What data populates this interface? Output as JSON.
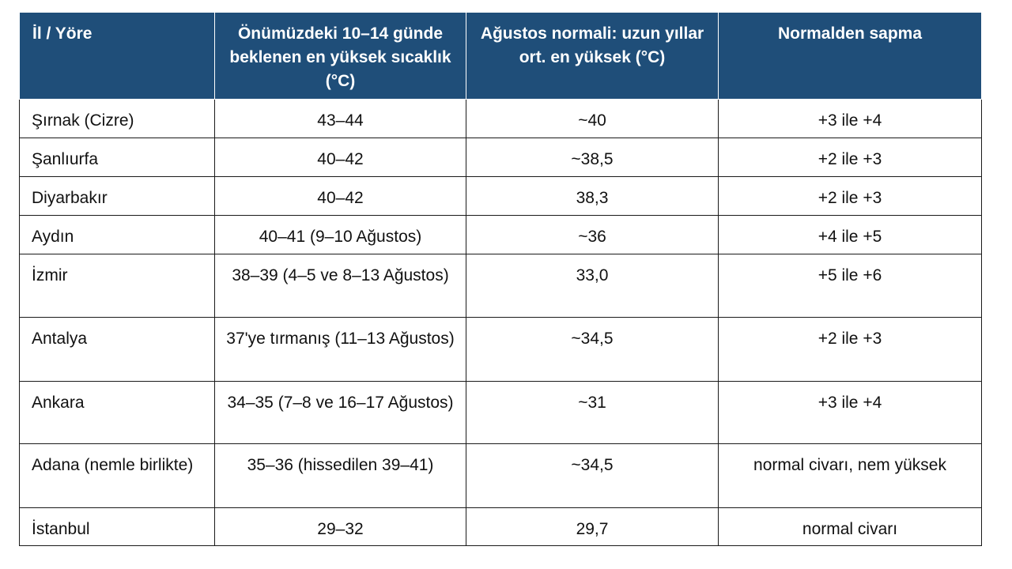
{
  "table": {
    "headers": [
      "İl / Yöre",
      "Önümüzdeki 10–14 günde beklenen en yüksek sıcaklık (°C)",
      "Ağustos normali: uzun yıllar ort. en yüksek (°C)",
      "Normalden sapma"
    ],
    "rows": [
      [
        "Şırnak (Cizre)",
        "43–44",
        "~40",
        "+3 ile +4"
      ],
      [
        "Şanlıurfa",
        "40–42",
        "~38,5",
        "+2 ile +3"
      ],
      [
        "Diyarbakır",
        "40–42",
        "38,3",
        "+2 ile +3"
      ],
      [
        "Aydın",
        "40–41 (9–10 Ağustos)",
        "~36",
        "+4 ile +5"
      ],
      [
        "İzmir",
        "38–39 (4–5 ve 8–13 Ağustos)",
        "33,0",
        "+5 ile +6"
      ],
      [
        "Antalya",
        "37'ye tırmanış (11–13 Ağustos)",
        "~34,5",
        "+2 ile +3"
      ],
      [
        "Ankara",
        "34–35 (7–8 ve 16–17 Ağustos)",
        "~31",
        "+3 ile +4"
      ],
      [
        "Adana (nemle birlikte)",
        "35–36 (hissedilen 39–41)",
        "~34,5",
        "normal civarı, nem yüksek"
      ],
      [
        "İstanbul",
        "29–32",
        "29,7",
        "normal civarı"
      ]
    ]
  },
  "colors": {
    "header_bg": "#1f4e79",
    "header_text": "#ffffff",
    "border": "#1a1a1a"
  }
}
